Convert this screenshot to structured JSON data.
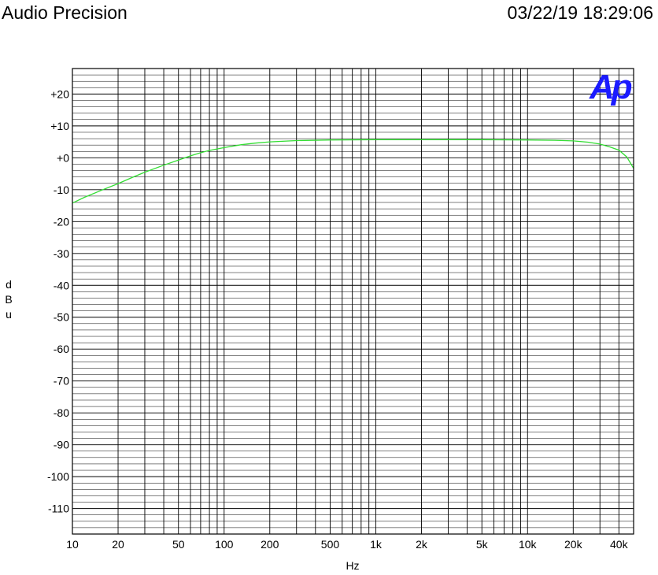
{
  "header": {
    "brand": "Audio Precision",
    "timestamp": "03/22/19 18:29:06"
  },
  "logo": {
    "text": "Ap",
    "color": "#1a1aff"
  },
  "chart_data": {
    "type": "line",
    "xlabel": "Hz",
    "ylabel": "dBu",
    "xscale": "log",
    "xlim": [
      10,
      50000
    ],
    "ylim": [
      -118,
      28
    ],
    "grid": true,
    "x_ticks": [
      {
        "value": 10,
        "label": "10"
      },
      {
        "value": 20,
        "label": "20"
      },
      {
        "value": 50,
        "label": "50"
      },
      {
        "value": 100,
        "label": "100"
      },
      {
        "value": 200,
        "label": "200"
      },
      {
        "value": 500,
        "label": "500"
      },
      {
        "value": 1000,
        "label": "1k"
      },
      {
        "value": 2000,
        "label": "2k"
      },
      {
        "value": 5000,
        "label": "5k"
      },
      {
        "value": 10000,
        "label": "10k"
      },
      {
        "value": 20000,
        "label": "20k"
      },
      {
        "value": 40000,
        "label": "40k"
      }
    ],
    "y_ticks": [
      {
        "value": 20,
        "label": "+20"
      },
      {
        "value": 10,
        "label": "+10"
      },
      {
        "value": 0,
        "label": "+0"
      },
      {
        "value": -10,
        "label": "-10"
      },
      {
        "value": -20,
        "label": "-20"
      },
      {
        "value": -30,
        "label": "-30"
      },
      {
        "value": -40,
        "label": "-40"
      },
      {
        "value": -50,
        "label": "-50"
      },
      {
        "value": -60,
        "label": "-60"
      },
      {
        "value": -70,
        "label": "-70"
      },
      {
        "value": -80,
        "label": "-80"
      },
      {
        "value": -90,
        "label": "-90"
      },
      {
        "value": -100,
        "label": "-100"
      },
      {
        "value": -110,
        "label": "-110"
      }
    ],
    "series": [
      {
        "color": "#33dd33",
        "x": [
          10,
          12,
          15,
          20,
          25,
          30,
          40,
          50,
          60,
          70,
          80,
          100,
          130,
          160,
          200,
          300,
          500,
          1000,
          2000,
          5000,
          10000,
          15000,
          20000,
          25000,
          30000,
          35000,
          40000,
          45000,
          50000
        ],
        "y": [
          -14.2,
          -12.4,
          -10.5,
          -8.1,
          -6.1,
          -4.5,
          -2.3,
          -0.7,
          0.6,
          1.6,
          2.3,
          3.2,
          4.1,
          4.6,
          5.0,
          5.4,
          5.6,
          5.7,
          5.7,
          5.7,
          5.6,
          5.5,
          5.3,
          4.9,
          4.3,
          3.4,
          2.4,
          0.3,
          -3.3
        ]
      }
    ]
  }
}
